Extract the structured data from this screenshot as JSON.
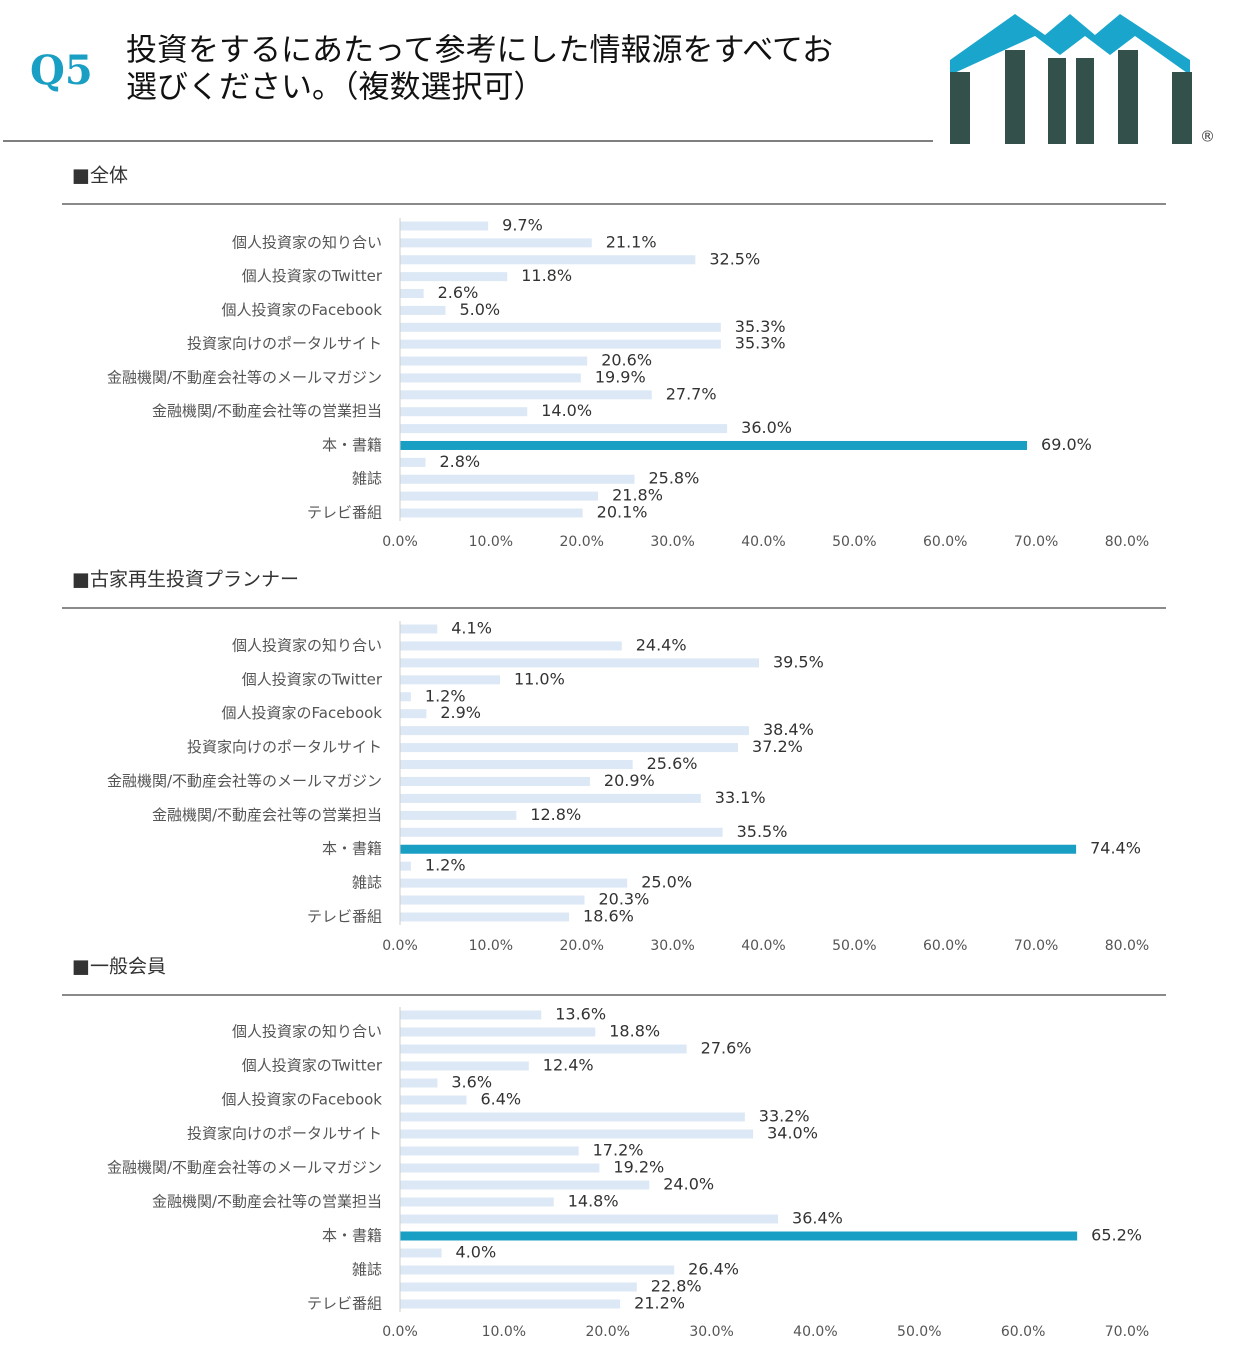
{
  "header": {
    "label": "Q5",
    "title_lines": [
      "投資をするにあたって参考にした情報源をすべてお",
      "選びください。（複数選択可）"
    ],
    "mark": "®"
  },
  "chart_data": [
    {
      "type": "barh",
      "title": "■全体",
      "categories": [
        null,
        "個人投資家の知り合い",
        null,
        "個人投資家のTwitter",
        null,
        "個人投資家のFacebook",
        null,
        "投資家向けのポータルサイト",
        null,
        "金融機関/不動産会社等のメールマガジン",
        null,
        "金融機関/不動産会社等の営業担当",
        null,
        "本・書籍",
        null,
        "雑誌",
        null,
        "テレビ番組"
      ],
      "values": [
        9.7,
        21.1,
        32.5,
        11.8,
        2.6,
        5.0,
        35.3,
        35.3,
        20.6,
        19.9,
        27.7,
        14.0,
        36.0,
        69.0,
        2.8,
        25.8,
        21.8,
        20.1
      ],
      "value_labels": [
        "9.7%",
        "21.1%",
        "32.5%",
        "11.8%",
        "2.6%",
        "5.0%",
        "35.3%",
        "35.3%",
        "20.6%",
        "19.9%",
        "27.7%",
        "14.0%",
        "36.0%",
        "69.0%",
        "2.8%",
        "25.8%",
        "21.8%",
        "20.1%"
      ],
      "colors": [
        "#dce8f5",
        "#dce8f5",
        "#dce8f5",
        "#dce8f5",
        "#dce8f5",
        "#dce8f5",
        "#dce8f5",
        "#dce8f5",
        "#dce8f5",
        "#dce8f5",
        "#dce8f5",
        "#dce8f5",
        "#dce8f5",
        "#1a9fc4",
        "#dce8f5",
        "#dce8f5",
        "#dce8f5",
        "#dce8f5"
      ],
      "xlim": [
        0,
        80
      ],
      "xticks": [
        {
          "value": 0,
          "label": "0.0%"
        },
        {
          "value": 10,
          "label": "10.0%"
        },
        {
          "value": 20,
          "label": "20.0%"
        },
        {
          "value": 30,
          "label": "30.0%"
        },
        {
          "value": 40,
          "label": "40.0%"
        },
        {
          "value": 50,
          "label": "50.0%"
        },
        {
          "value": 60,
          "label": "60.0%"
        },
        {
          "value": 70,
          "label": "70.0%"
        },
        {
          "value": 80,
          "label": "80.0%"
        }
      ]
    },
    {
      "type": "barh",
      "title": "■古家再生投資プランナー",
      "categories": [
        null,
        "個人投資家の知り合い",
        null,
        "個人投資家のTwitter",
        null,
        "個人投資家のFacebook",
        null,
        "投資家向けのポータルサイト",
        null,
        "金融機関/不動産会社等のメールマガジン",
        null,
        "金融機関/不動産会社等の営業担当",
        null,
        "本・書籍",
        null,
        "雑誌",
        null,
        "テレビ番組"
      ],
      "values": [
        4.1,
        24.4,
        39.5,
        11.0,
        1.2,
        2.9,
        38.4,
        37.2,
        25.6,
        20.9,
        33.1,
        12.8,
        35.5,
        74.4,
        1.2,
        25.0,
        20.3,
        18.6
      ],
      "value_labels": [
        "4.1%",
        "24.4%",
        "39.5%",
        "11.0%",
        "1.2%",
        "2.9%",
        "38.4%",
        "37.2%",
        "25.6%",
        "20.9%",
        "33.1%",
        "12.8%",
        "35.5%",
        "74.4%",
        "1.2%",
        "25.0%",
        "20.3%",
        "18.6%"
      ],
      "colors": [
        "#dce8f5",
        "#dce8f5",
        "#dce8f5",
        "#dce8f5",
        "#dce8f5",
        "#dce8f5",
        "#dce8f5",
        "#dce8f5",
        "#dce8f5",
        "#dce8f5",
        "#dce8f5",
        "#dce8f5",
        "#dce8f5",
        "#1a9fc4",
        "#dce8f5",
        "#dce8f5",
        "#dce8f5",
        "#dce8f5"
      ],
      "xlim": [
        0,
        80
      ],
      "xticks": [
        {
          "value": 0,
          "label": "0.0%"
        },
        {
          "value": 10,
          "label": "10.0%"
        },
        {
          "value": 20,
          "label": "20.0%"
        },
        {
          "value": 30,
          "label": "30.0%"
        },
        {
          "value": 40,
          "label": "40.0%"
        },
        {
          "value": 50,
          "label": "50.0%"
        },
        {
          "value": 60,
          "label": "60.0%"
        },
        {
          "value": 70,
          "label": "70.0%"
        },
        {
          "value": 80,
          "label": "80.0%"
        }
      ]
    },
    {
      "type": "barh",
      "title": "■一般会員",
      "categories": [
        null,
        "個人投資家の知り合い",
        null,
        "個人投資家のTwitter",
        null,
        "個人投資家のFacebook",
        null,
        "投資家向けのポータルサイト",
        null,
        "金融機関/不動産会社等のメールマガジン",
        null,
        "金融機関/不動産会社等の営業担当",
        null,
        "本・書籍",
        null,
        "雑誌",
        null,
        "テレビ番組"
      ],
      "values": [
        13.6,
        18.8,
        27.6,
        12.4,
        3.6,
        6.4,
        33.2,
        34.0,
        17.2,
        19.2,
        24.0,
        14.8,
        36.4,
        65.2,
        4.0,
        26.4,
        22.8,
        21.2
      ],
      "value_labels": [
        "13.6%",
        "18.8%",
        "27.6%",
        "12.4%",
        "3.6%",
        "6.4%",
        "33.2%",
        "34.0%",
        "17.2%",
        "19.2%",
        "24.0%",
        "14.8%",
        "36.4%",
        "65.2%",
        "4.0%",
        "26.4%",
        "22.8%",
        "21.2%"
      ],
      "colors": [
        "#dce8f5",
        "#dce8f5",
        "#dce8f5",
        "#dce8f5",
        "#dce8f5",
        "#dce8f5",
        "#dce8f5",
        "#dce8f5",
        "#dce8f5",
        "#dce8f5",
        "#dce8f5",
        "#dce8f5",
        "#dce8f5",
        "#1a9fc4",
        "#dce8f5",
        "#dce8f5",
        "#dce8f5",
        "#dce8f5"
      ],
      "xlim": [
        0,
        70
      ],
      "xticks": [
        {
          "value": 0,
          "label": "0.0%"
        },
        {
          "value": 10,
          "label": "10.0%"
        },
        {
          "value": 20,
          "label": "20.0%"
        },
        {
          "value": 30,
          "label": "30.0%"
        },
        {
          "value": 40,
          "label": "40.0%"
        },
        {
          "value": 50,
          "label": "50.0%"
        },
        {
          "value": 60,
          "label": "60.0%"
        },
        {
          "value": 70,
          "label": "70.0%"
        }
      ]
    }
  ]
}
